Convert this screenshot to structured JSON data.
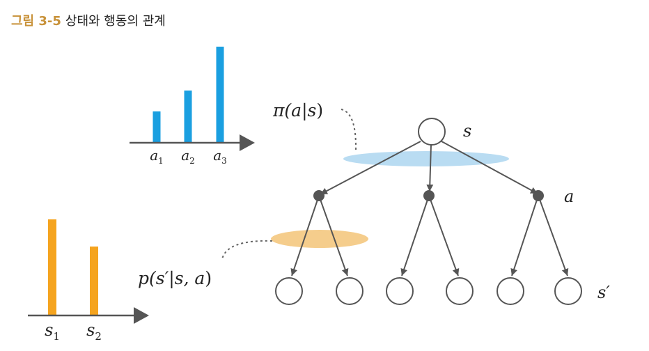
{
  "caption": {
    "number": "그림 3-5",
    "text": "상태와 행동의 관계"
  },
  "colors": {
    "caption_number": "#c8923a",
    "policy_bars": "#1a9fe0",
    "policy_highlight": "#b9dcf2",
    "transition_bars": "#f5a41f",
    "transition_highlight": "#f5cd8c",
    "tree_lines": "#555555",
    "action_nodes": "#555555"
  },
  "policy_chart": {
    "labels": [
      "a",
      "a",
      "a"
    ],
    "subscripts": [
      "1",
      "2",
      "3"
    ],
    "values": [
      1.5,
      2.5,
      4.6
    ]
  },
  "transition_chart": {
    "labels": [
      "s",
      "s"
    ],
    "subscripts": [
      "1",
      "2"
    ],
    "values": [
      4.6,
      3.3
    ]
  },
  "annotations": {
    "policy_prefix": "π(a",
    "policy_mid": "|s",
    "policy_suffix": ")",
    "transition_prefix": "p(s′",
    "transition_mid": "|s, a",
    "transition_suffix": ")"
  },
  "tree_labels": {
    "state": "s",
    "action": "a",
    "next_state": "s′"
  }
}
